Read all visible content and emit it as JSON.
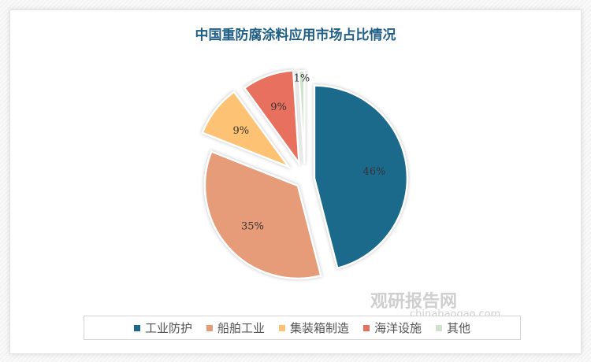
{
  "chart_data": {
    "type": "pie",
    "title": "中国重防腐涂料应用市场占比情况",
    "categories": [
      "工业防护",
      "船舶工业",
      "集装箱制造",
      "海洋设施",
      "其他"
    ],
    "values": [
      46,
      35,
      9,
      9,
      1
    ],
    "labels": [
      "46%",
      "35%",
      "9%",
      "9%",
      "1%"
    ],
    "colors": [
      "#1b6a8c",
      "#e69b79",
      "#fdc274",
      "#e8705e",
      "#cfe3cc"
    ],
    "exploded": true,
    "legend": "bottom"
  },
  "watermark": {
    "name": "观研报告网",
    "url": "chinabaogao.com"
  }
}
